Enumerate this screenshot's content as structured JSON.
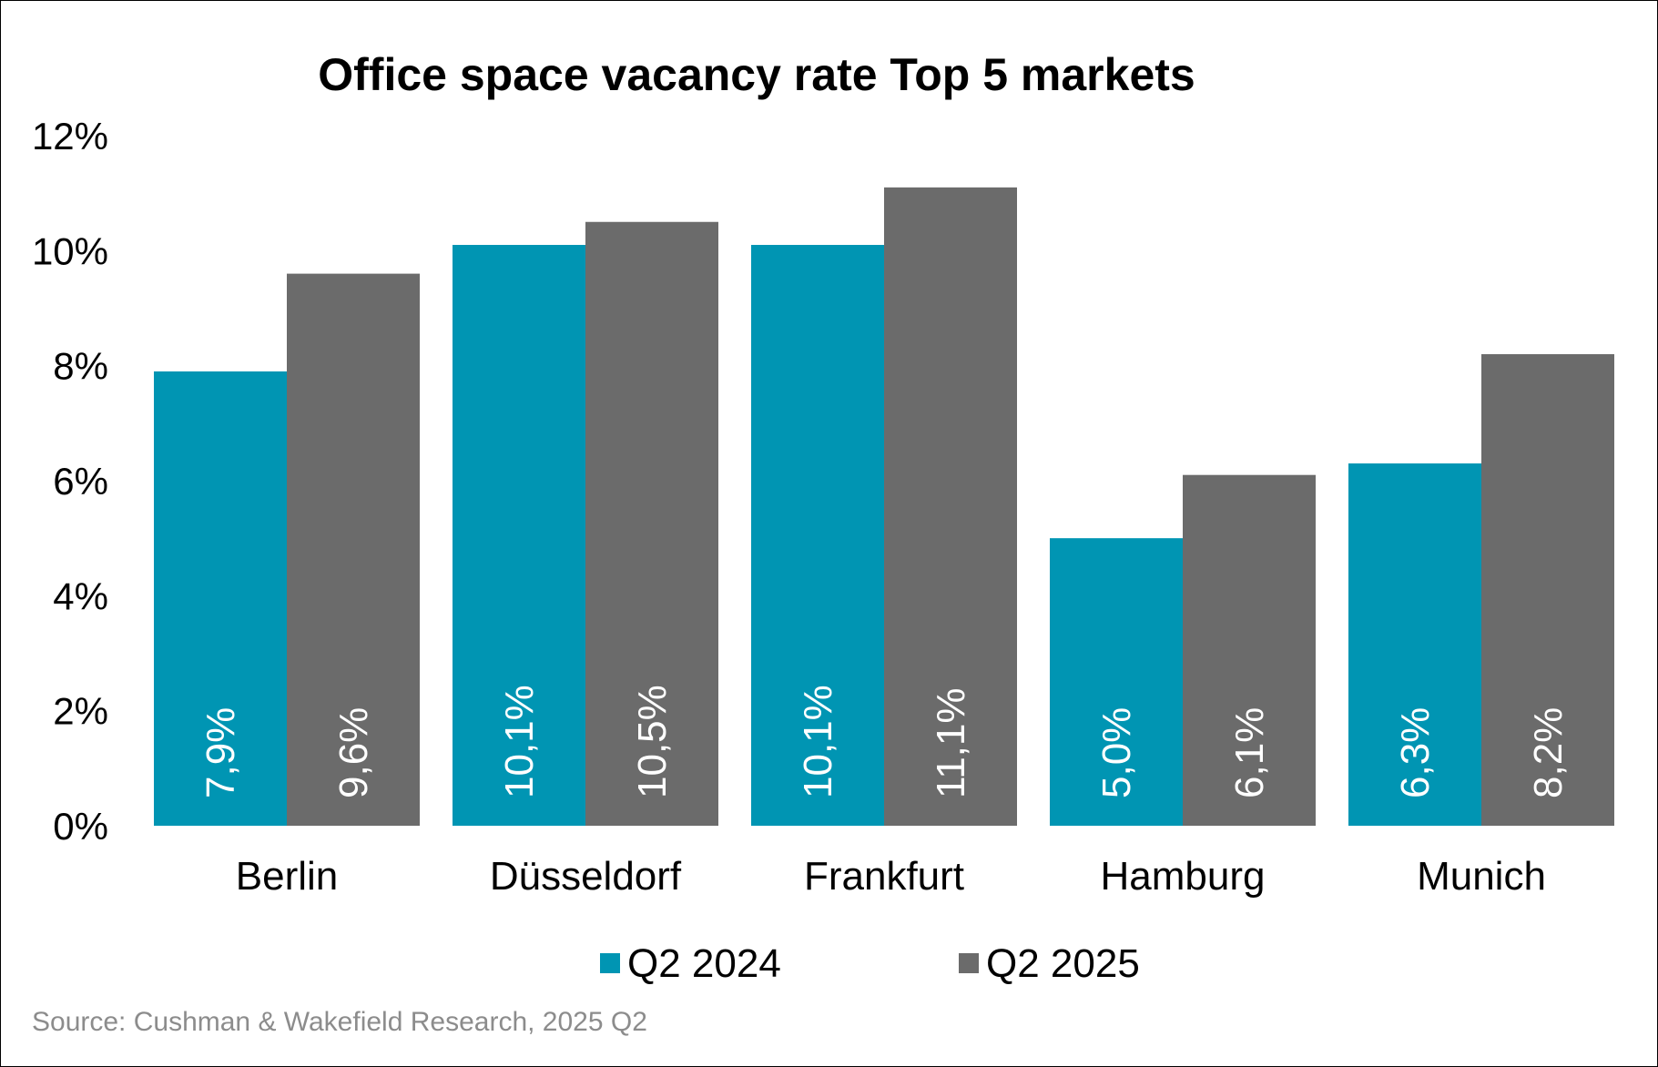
{
  "chart_data": {
    "type": "bar",
    "title": "Office space vacancy rate Top 5 markets",
    "categories": [
      "Berlin",
      "Düsseldorf",
      "Frankfurt",
      "Hamburg",
      "Munich"
    ],
    "series": [
      {
        "name": "Q2 2024",
        "color": "#0095b3",
        "values": [
          7.9,
          10.1,
          10.1,
          5.0,
          6.3
        ],
        "labels": [
          "7,9%",
          "10,1%",
          "10,1%",
          "5,0%",
          "6,3%"
        ]
      },
      {
        "name": "Q2 2025",
        "color": "#6b6b6b",
        "values": [
          9.6,
          10.5,
          11.1,
          6.1,
          8.2
        ],
        "labels": [
          "9,6%",
          "10,5%",
          "11,1%",
          "6,1%",
          "8,2%"
        ]
      }
    ],
    "yticks": [
      "0%",
      "2%",
      "4%",
      "6%",
      "8%",
      "10%",
      "12%"
    ],
    "ylim": [
      0,
      12
    ],
    "xlabel": "",
    "ylabel": "",
    "grid": false,
    "legend_position": "bottom-center"
  },
  "source": "Source: Cushman & Wakefield Research, 2025 Q2"
}
